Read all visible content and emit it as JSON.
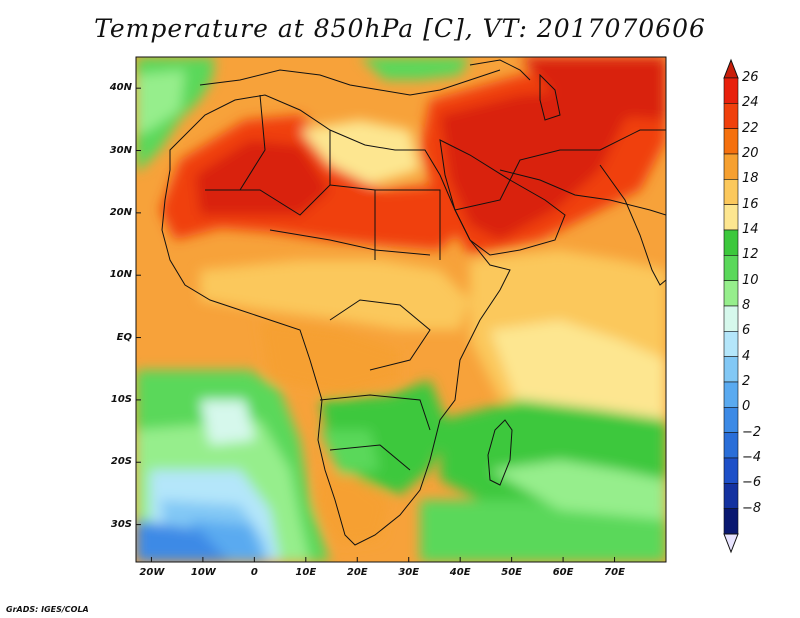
{
  "title": "Temperature at 850hPa [C], VT: 2017070606",
  "credit": "GrADS: IGES/COLA",
  "map": {
    "lon_range": [
      -23,
      80
    ],
    "lat_range": [
      -36,
      45
    ],
    "x_ticks": [
      {
        "lon": -20,
        "label": "20W"
      },
      {
        "lon": -10,
        "label": "10W"
      },
      {
        "lon": 0,
        "label": "0"
      },
      {
        "lon": 10,
        "label": "10E"
      },
      {
        "lon": 20,
        "label": "20E"
      },
      {
        "lon": 30,
        "label": "30E"
      },
      {
        "lon": 40,
        "label": "40E"
      },
      {
        "lon": 50,
        "label": "50E"
      },
      {
        "lon": 60,
        "label": "60E"
      },
      {
        "lon": 70,
        "label": "70E"
      }
    ],
    "y_ticks": [
      {
        "lat": 40,
        "label": "40N"
      },
      {
        "lat": 30,
        "label": "30N"
      },
      {
        "lat": 20,
        "label": "20N"
      },
      {
        "lat": 10,
        "label": "10N"
      },
      {
        "lat": 0,
        "label": "EQ"
      },
      {
        "lat": -10,
        "label": "10S"
      },
      {
        "lat": -20,
        "label": "20S"
      },
      {
        "lat": -30,
        "label": "30S"
      }
    ]
  },
  "colorbar": {
    "levels": [
      {
        "label": "26",
        "color": "#e8200c"
      },
      {
        "label": "24",
        "color": "#f0400c"
      },
      {
        "label": "22",
        "color": "#f5700e"
      },
      {
        "label": "20",
        "color": "#f6a030"
      },
      {
        "label": "18",
        "color": "#fbc85c"
      },
      {
        "label": "16",
        "color": "#fde690"
      },
      {
        "label": "14",
        "color": "#3cc83c"
      },
      {
        "label": "12",
        "color": "#5ad85a"
      },
      {
        "label": "10",
        "color": "#96ee8c"
      },
      {
        "label": "8",
        "color": "#d6f8ec"
      },
      {
        "label": "6",
        "color": "#b4e6fa"
      },
      {
        "label": "4",
        "color": "#82c8f5"
      },
      {
        "label": "2",
        "color": "#5aaaf0"
      },
      {
        "label": "0",
        "color": "#3c8ae6"
      },
      {
        "label": "−2",
        "color": "#2a6ed8"
      },
      {
        "label": "−4",
        "color": "#1e50c8"
      },
      {
        "label": "−6",
        "color": "#1432a0"
      },
      {
        "label": "−8",
        "color": "#0a1870"
      }
    ],
    "top_arrow_color": "#c81e0a",
    "bottom_arrow_color": "#e8e4ff"
  },
  "colors": {
    "ocean_base": "#f7a23a",
    "south_atlantic": "#5ad85a",
    "sahara_hot": "#d9200a",
    "arabia_hot": "#d9200a",
    "coastlines": "#111111"
  }
}
